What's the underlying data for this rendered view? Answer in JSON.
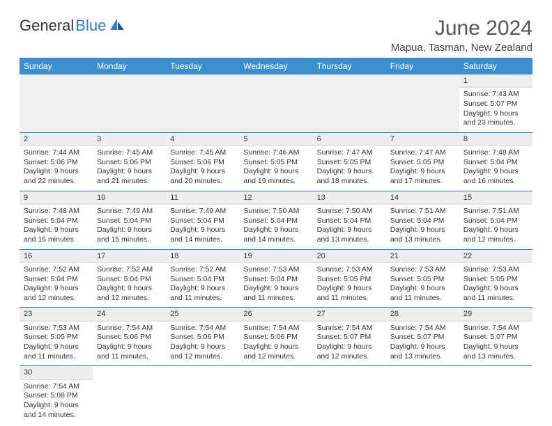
{
  "logo": {
    "text1": "General",
    "text2": "Blue"
  },
  "title": "June 2024",
  "location": "Mapua, Tasman, New Zealand",
  "colors": {
    "header_bg": "#3b8fce",
    "header_text": "#ffffff",
    "week_sep": "#2a7fc5",
    "daynum_bg": "#eeeeee",
    "page_bg": "#ffffff"
  },
  "day_headers": [
    "Sunday",
    "Monday",
    "Tuesday",
    "Wednesday",
    "Thursday",
    "Friday",
    "Saturday"
  ],
  "weeks": [
    [
      null,
      null,
      null,
      null,
      null,
      null,
      {
        "n": "1",
        "sunrise": "Sunrise: 7:43 AM",
        "sunset": "Sunset: 5:07 PM",
        "daylight": "Daylight: 9 hours and 23 minutes."
      }
    ],
    [
      {
        "n": "2",
        "sunrise": "Sunrise: 7:44 AM",
        "sunset": "Sunset: 5:06 PM",
        "daylight": "Daylight: 9 hours and 22 minutes."
      },
      {
        "n": "3",
        "sunrise": "Sunrise: 7:45 AM",
        "sunset": "Sunset: 5:06 PM",
        "daylight": "Daylight: 9 hours and 21 minutes."
      },
      {
        "n": "4",
        "sunrise": "Sunrise: 7:45 AM",
        "sunset": "Sunset: 5:06 PM",
        "daylight": "Daylight: 9 hours and 20 minutes."
      },
      {
        "n": "5",
        "sunrise": "Sunrise: 7:46 AM",
        "sunset": "Sunset: 5:05 PM",
        "daylight": "Daylight: 9 hours and 19 minutes."
      },
      {
        "n": "6",
        "sunrise": "Sunrise: 7:47 AM",
        "sunset": "Sunset: 5:05 PM",
        "daylight": "Daylight: 9 hours and 18 minutes."
      },
      {
        "n": "7",
        "sunrise": "Sunrise: 7:47 AM",
        "sunset": "Sunset: 5:05 PM",
        "daylight": "Daylight: 9 hours and 17 minutes."
      },
      {
        "n": "8",
        "sunrise": "Sunrise: 7:48 AM",
        "sunset": "Sunset: 5:04 PM",
        "daylight": "Daylight: 9 hours and 16 minutes."
      }
    ],
    [
      {
        "n": "9",
        "sunrise": "Sunrise: 7:48 AM",
        "sunset": "Sunset: 5:04 PM",
        "daylight": "Daylight: 9 hours and 15 minutes."
      },
      {
        "n": "10",
        "sunrise": "Sunrise: 7:49 AM",
        "sunset": "Sunset: 5:04 PM",
        "daylight": "Daylight: 9 hours and 15 minutes."
      },
      {
        "n": "11",
        "sunrise": "Sunrise: 7:49 AM",
        "sunset": "Sunset: 5:04 PM",
        "daylight": "Daylight: 9 hours and 14 minutes."
      },
      {
        "n": "12",
        "sunrise": "Sunrise: 7:50 AM",
        "sunset": "Sunset: 5:04 PM",
        "daylight": "Daylight: 9 hours and 14 minutes."
      },
      {
        "n": "13",
        "sunrise": "Sunrise: 7:50 AM",
        "sunset": "Sunset: 5:04 PM",
        "daylight": "Daylight: 9 hours and 13 minutes."
      },
      {
        "n": "14",
        "sunrise": "Sunrise: 7:51 AM",
        "sunset": "Sunset: 5:04 PM",
        "daylight": "Daylight: 9 hours and 13 minutes."
      },
      {
        "n": "15",
        "sunrise": "Sunrise: 7:51 AM",
        "sunset": "Sunset: 5:04 PM",
        "daylight": "Daylight: 9 hours and 12 minutes."
      }
    ],
    [
      {
        "n": "16",
        "sunrise": "Sunrise: 7:52 AM",
        "sunset": "Sunset: 5:04 PM",
        "daylight": "Daylight: 9 hours and 12 minutes."
      },
      {
        "n": "17",
        "sunrise": "Sunrise: 7:52 AM",
        "sunset": "Sunset: 5:04 PM",
        "daylight": "Daylight: 9 hours and 12 minutes."
      },
      {
        "n": "18",
        "sunrise": "Sunrise: 7:52 AM",
        "sunset": "Sunset: 5:04 PM",
        "daylight": "Daylight: 9 hours and 11 minutes."
      },
      {
        "n": "19",
        "sunrise": "Sunrise: 7:53 AM",
        "sunset": "Sunset: 5:04 PM",
        "daylight": "Daylight: 9 hours and 11 minutes."
      },
      {
        "n": "20",
        "sunrise": "Sunrise: 7:53 AM",
        "sunset": "Sunset: 5:05 PM",
        "daylight": "Daylight: 9 hours and 11 minutes."
      },
      {
        "n": "21",
        "sunrise": "Sunrise: 7:53 AM",
        "sunset": "Sunset: 5:05 PM",
        "daylight": "Daylight: 9 hours and 11 minutes."
      },
      {
        "n": "22",
        "sunrise": "Sunrise: 7:53 AM",
        "sunset": "Sunset: 5:05 PM",
        "daylight": "Daylight: 9 hours and 11 minutes."
      }
    ],
    [
      {
        "n": "23",
        "sunrise": "Sunrise: 7:53 AM",
        "sunset": "Sunset: 5:05 PM",
        "daylight": "Daylight: 9 hours and 11 minutes."
      },
      {
        "n": "24",
        "sunrise": "Sunrise: 7:54 AM",
        "sunset": "Sunset: 5:06 PM",
        "daylight": "Daylight: 9 hours and 11 minutes."
      },
      {
        "n": "25",
        "sunrise": "Sunrise: 7:54 AM",
        "sunset": "Sunset: 5:06 PM",
        "daylight": "Daylight: 9 hours and 12 minutes."
      },
      {
        "n": "26",
        "sunrise": "Sunrise: 7:54 AM",
        "sunset": "Sunset: 5:06 PM",
        "daylight": "Daylight: 9 hours and 12 minutes."
      },
      {
        "n": "27",
        "sunrise": "Sunrise: 7:54 AM",
        "sunset": "Sunset: 5:07 PM",
        "daylight": "Daylight: 9 hours and 12 minutes."
      },
      {
        "n": "28",
        "sunrise": "Sunrise: 7:54 AM",
        "sunset": "Sunset: 5:07 PM",
        "daylight": "Daylight: 9 hours and 13 minutes."
      },
      {
        "n": "29",
        "sunrise": "Sunrise: 7:54 AM",
        "sunset": "Sunset: 5:07 PM",
        "daylight": "Daylight: 9 hours and 13 minutes."
      }
    ],
    [
      {
        "n": "30",
        "sunrise": "Sunrise: 7:54 AM",
        "sunset": "Sunset: 5:08 PM",
        "daylight": "Daylight: 9 hours and 14 minutes."
      },
      null,
      null,
      null,
      null,
      null,
      null
    ]
  ]
}
